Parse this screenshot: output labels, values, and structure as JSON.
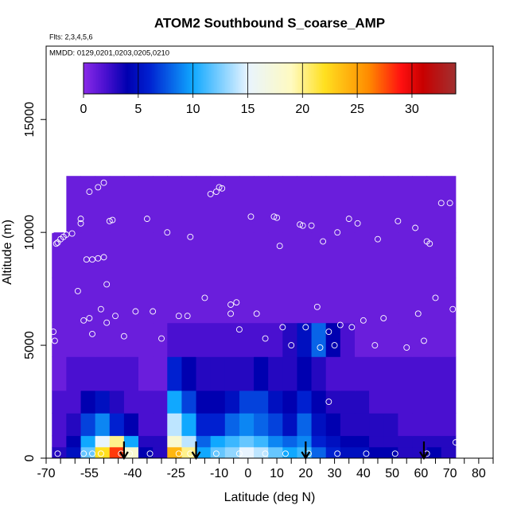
{
  "chart_data": {
    "type": "heatmap",
    "title": "ATOM2 Southbound S_coarse_AMP",
    "subtitle": "Flts: 2,3,4,5,6",
    "annotation": "MMDD: 0129,0201,0203,0205,0210",
    "xlabel": "Latitude (deg N)",
    "ylabel": "Altitude (m)",
    "xlim": [
      -70,
      85
    ],
    "ylim": [
      0,
      18250
    ],
    "xticks": [
      -70,
      -55,
      -40,
      -25,
      -10,
      0,
      10,
      20,
      30,
      40,
      50,
      60,
      70,
      80
    ],
    "xminor_ticks": [
      -65,
      -60,
      -50,
      -45,
      -35,
      -30,
      -20,
      -15,
      -5,
      5,
      15,
      25,
      35,
      45,
      55,
      65,
      75,
      85
    ],
    "yticks": [
      0,
      5000,
      10000,
      15000
    ],
    "zlim": [
      0,
      34
    ],
    "zticks": [
      0,
      5,
      10,
      15,
      20,
      25,
      30
    ],
    "colorscale": [
      [
        0,
        "#8a2be8"
      ],
      [
        2,
        "#4a10d0"
      ],
      [
        4,
        "#0000b0"
      ],
      [
        6,
        "#0020d0"
      ],
      [
        10,
        "#10a8ff"
      ],
      [
        15,
        "#e8f4ff"
      ],
      [
        19,
        "#fffac0"
      ],
      [
        22,
        "#ffe020"
      ],
      [
        26,
        "#ff8c00"
      ],
      [
        29,
        "#ff1010"
      ],
      [
        31,
        "#c80000"
      ],
      [
        34,
        "#a03030"
      ]
    ],
    "x_edges": [
      -68,
      -63,
      -58,
      -53,
      -48,
      -43,
      -38,
      -33,
      -28,
      -23,
      -18,
      -13,
      -8,
      -3,
      2,
      7,
      12,
      17,
      22,
      27,
      32,
      37,
      42,
      47,
      52,
      57,
      62,
      67,
      72
    ],
    "y_edges": [
      0,
      500,
      1000,
      2000,
      3000,
      4500,
      6000,
      8000,
      10000,
      12500
    ],
    "z": [
      [
        3,
        5,
        12,
        22,
        28,
        18,
        4,
        3,
        24,
        20,
        10,
        12,
        13,
        15,
        14,
        12,
        10,
        11,
        8,
        6,
        5,
        5,
        4,
        4,
        3,
        3,
        4,
        3
      ],
      [
        2,
        4,
        10,
        15,
        20,
        10,
        3,
        3,
        18,
        14,
        8,
        10,
        11,
        12,
        11,
        9,
        8,
        9,
        6,
        5,
        4,
        4,
        3,
        3,
        3,
        3,
        3,
        3
      ],
      [
        2,
        3,
        7,
        9,
        6,
        4,
        2,
        2,
        14,
        10,
        6,
        6,
        8,
        9,
        8,
        7,
        5,
        8,
        5,
        4,
        3,
        3,
        3,
        3,
        2,
        2,
        2,
        2
      ],
      [
        2,
        2,
        4,
        5,
        3,
        2,
        2,
        2,
        10,
        7,
        4,
        4,
        5,
        7,
        7,
        5,
        4,
        6,
        4,
        3,
        3,
        3,
        2,
        2,
        2,
        2,
        2,
        2
      ],
      [
        1,
        2,
        2,
        2,
        2,
        2,
        1,
        1,
        6,
        4,
        3,
        3,
        3,
        3,
        4,
        3,
        3,
        4,
        3,
        2,
        2,
        2,
        2,
        2,
        2,
        2,
        2,
        2
      ],
      [
        1,
        1,
        1,
        1,
        1,
        1,
        1,
        1,
        2,
        2,
        2,
        2,
        2,
        2,
        2,
        2,
        3,
        5,
        8,
        4,
        2,
        1,
        1,
        1,
        1,
        1,
        1,
        1
      ],
      [
        1,
        1,
        1,
        1,
        1,
        1,
        1,
        1,
        1,
        1,
        1,
        1,
        1,
        1,
        1,
        1,
        1,
        1,
        1,
        1,
        1,
        1,
        1,
        1,
        1,
        1,
        1,
        1
      ],
      [
        1,
        1,
        1,
        1,
        1,
        1,
        1,
        1,
        1,
        1,
        1,
        1,
        1,
        1,
        1,
        1,
        1,
        1,
        1,
        1,
        1,
        1,
        1,
        1,
        1,
        1,
        1,
        1
      ],
      [
        null,
        1,
        1,
        1,
        1,
        1,
        1,
        1,
        1,
        1,
        1,
        1,
        1,
        1,
        1,
        1,
        1,
        1,
        1,
        1,
        1,
        1,
        1,
        1,
        1,
        1,
        1,
        1
      ]
    ],
    "point_lat": [
      -68,
      -67.5,
      -67,
      -66.5,
      -66,
      -65,
      -64,
      -63,
      -61,
      -59,
      -58,
      -58,
      -57,
      -56,
      -55,
      -55,
      -54,
      -54,
      -52,
      -52,
      -51,
      -50,
      -50,
      -49,
      -49,
      -48,
      -47,
      -46,
      -43,
      -39,
      -35,
      -33,
      -30,
      -28,
      -24,
      -21,
      -20,
      -15,
      -13,
      -11,
      -10,
      -9,
      -6,
      -6,
      -4,
      -3,
      1,
      3,
      6,
      9,
      10,
      11,
      12,
      15,
      18,
      19,
      20,
      22,
      24,
      25,
      26,
      28,
      28,
      30,
      31,
      32,
      35,
      36,
      38,
      40,
      44,
      45,
      47,
      52,
      55,
      58,
      59,
      61,
      62,
      63,
      65,
      67,
      70,
      71,
      72,
      -66,
      -57,
      -54,
      -51,
      -44,
      -41,
      -34,
      -24,
      -20,
      -11,
      -3,
      6,
      13,
      21,
      31,
      41,
      51,
      62
    ],
    "point_alt": [
      10100,
      5600,
      5200,
      9500,
      9550,
      9700,
      9800,
      9900,
      9950,
      7400,
      10600,
      10400,
      6100,
      8800,
      6200,
      11800,
      5500,
      8800,
      12000,
      8850,
      6600,
      12200,
      8900,
      6000,
      7700,
      10500,
      10550,
      6300,
      5400,
      6500,
      10600,
      6500,
      5300,
      10000,
      6300,
      6300,
      9800,
      7100,
      11700,
      11800,
      12000,
      11950,
      6400,
      6800,
      6900,
      5700,
      10700,
      6400,
      5300,
      10700,
      10650,
      9400,
      5800,
      5000,
      10350,
      10300,
      5800,
      10300,
      6700,
      4900,
      9600,
      5600,
      2500,
      5000,
      10000,
      5900,
      10600,
      5800,
      10400,
      6100,
      5000,
      9700,
      6200,
      10500,
      4900,
      10200,
      6400,
      5200,
      9600,
      9500,
      7100,
      11300,
      11300,
      6600,
      700,
      200,
      200,
      200,
      200,
      200,
      200,
      200,
      200,
      200,
      200,
      200,
      200,
      200,
      200,
      200,
      200,
      200,
      200
    ],
    "arrow_lats": [
      -43,
      -18,
      20,
      61
    ]
  }
}
